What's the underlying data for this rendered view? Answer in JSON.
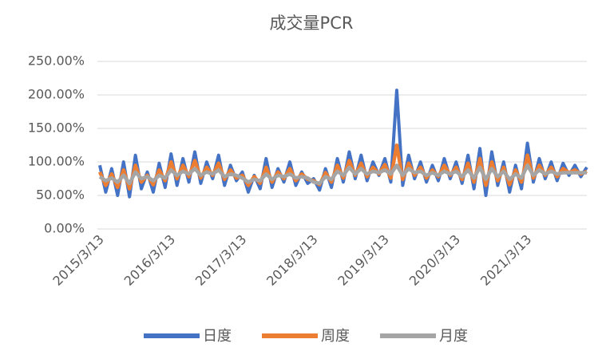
{
  "chart_data": {
    "type": "line",
    "title": "成交量PCR",
    "categories": [
      "2015/3/13",
      null,
      null,
      null,
      null,
      null,
      null,
      null,
      null,
      null,
      null,
      null,
      "2016/3/13",
      null,
      null,
      null,
      null,
      null,
      null,
      null,
      null,
      null,
      null,
      null,
      "2017/3/13",
      null,
      null,
      null,
      null,
      null,
      null,
      null,
      null,
      null,
      null,
      null,
      "2018/3/13",
      null,
      null,
      null,
      null,
      null,
      null,
      null,
      null,
      null,
      null,
      null,
      "2019/3/13",
      null,
      null,
      null,
      null,
      null,
      null,
      null,
      null,
      null,
      null,
      null,
      "2020/3/13",
      null,
      null,
      null,
      null,
      null,
      null,
      null,
      null,
      null,
      null,
      null,
      "2021/3/13",
      null,
      null,
      null,
      null,
      null,
      null,
      null,
      null,
      null,
      null
    ],
    "series": [
      {
        "name": "日度",
        "color": "#4472c4",
        "values": [
          95,
          55,
          90,
          50,
          100,
          48,
          110,
          60,
          85,
          55,
          98,
          62,
          112,
          65,
          105,
          70,
          115,
          68,
          100,
          75,
          110,
          65,
          95,
          72,
          85,
          55,
          80,
          60,
          105,
          62,
          90,
          70,
          100,
          65,
          85,
          68,
          75,
          58,
          90,
          62,
          105,
          70,
          115,
          75,
          110,
          72,
          100,
          80,
          105,
          70,
          207,
          65,
          110,
          75,
          100,
          70,
          95,
          72,
          105,
          75,
          100,
          68,
          110,
          60,
          120,
          50,
          115,
          65,
          100,
          55,
          95,
          60,
          128,
          70,
          105,
          75,
          100,
          72,
          98,
          80,
          95,
          78,
          92
        ]
      },
      {
        "name": "周度",
        "color": "#ed7d31",
        "values": [
          85,
          65,
          82,
          62,
          88,
          60,
          95,
          70,
          80,
          66,
          88,
          72,
          100,
          75,
          95,
          78,
          102,
          76,
          92,
          80,
          98,
          74,
          88,
          76,
          80,
          65,
          78,
          68,
          92,
          70,
          85,
          75,
          90,
          72,
          82,
          74,
          72,
          66,
          84,
          70,
          95,
          76,
          102,
          80,
          98,
          78,
          92,
          82,
          96,
          76,
          125,
          74,
          98,
          80,
          92,
          76,
          88,
          78,
          95,
          80,
          92,
          74,
          98,
          70,
          105,
          65,
          100,
          72,
          92,
          66,
          88,
          70,
          110,
          76,
          95,
          80,
          92,
          78,
          90,
          84,
          88,
          82,
          86
        ]
      },
      {
        "name": "月度",
        "color": "#a5a5a5",
        "values": [
          78,
          72,
          76,
          70,
          80,
          68,
          85,
          75,
          78,
          72,
          80,
          76,
          88,
          80,
          86,
          82,
          90,
          80,
          85,
          82,
          88,
          78,
          82,
          80,
          76,
          70,
          74,
          72,
          82,
          74,
          80,
          78,
          82,
          76,
          78,
          76,
          70,
          68,
          78,
          74,
          86,
          80,
          92,
          82,
          90,
          82,
          86,
          84,
          88,
          82,
          95,
          80,
          90,
          84,
          86,
          80,
          84,
          80,
          86,
          82,
          86,
          78,
          88,
          76,
          92,
          74,
          90,
          78,
          86,
          74,
          82,
          76,
          95,
          80,
          88,
          82,
          86,
          82,
          84,
          84,
          84,
          84,
          84
        ]
      }
    ],
    "ylim": [
      0,
      250
    ],
    "yticks": [
      {
        "value": 0,
        "label": "0.00%"
      },
      {
        "value": 50,
        "label": "50.00%"
      },
      {
        "value": 100,
        "label": "100.00%"
      },
      {
        "value": 150,
        "label": "150.00%"
      },
      {
        "value": 200,
        "label": "200.00%"
      },
      {
        "value": 250,
        "label": "250.00%"
      }
    ],
    "grid": true
  }
}
